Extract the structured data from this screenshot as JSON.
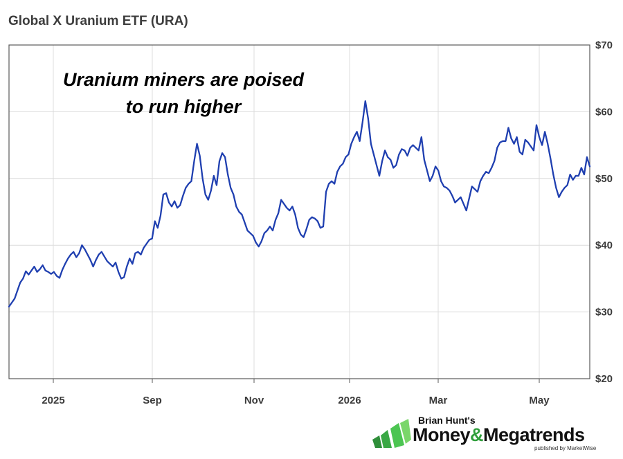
{
  "chart_data": {
    "type": "line",
    "title": "Global X Uranium ETF (URA)",
    "annotation": [
      "Uranium miners are poised",
      "to run higher"
    ],
    "xlabel": "",
    "ylabel": "",
    "ylim": [
      20,
      70
    ],
    "yticks": [
      20,
      30,
      40,
      50,
      60,
      70
    ],
    "ytick_labels": [
      "$20",
      "$30",
      "$40",
      "$50",
      "$60",
      "$70"
    ],
    "xtick_labels": [
      "2025",
      "Sep",
      "Nov",
      "2026",
      "Mar",
      "May"
    ],
    "grid": true,
    "line_color": "#1f3fb0",
    "series": [
      {
        "values": [
          30.8,
          31.4,
          32.0,
          33.2,
          34.4,
          35.0,
          36.1,
          35.6,
          36.2,
          36.8,
          36.0,
          36.4,
          37.0,
          36.2,
          36.0,
          35.7,
          36.0,
          35.4,
          35.1,
          36.3,
          37.2,
          38.0,
          38.6,
          39.0,
          38.2,
          38.8,
          40.0,
          39.4,
          38.6,
          37.8,
          36.8,
          37.8,
          38.6,
          39.0,
          38.3,
          37.6,
          37.2,
          36.8,
          37.4,
          36.0,
          35.0,
          35.2,
          36.8,
          38.0,
          37.2,
          38.8,
          39.0,
          38.6,
          39.6,
          40.2,
          40.8,
          41.0,
          43.6,
          42.6,
          44.4,
          47.6,
          47.8,
          46.4,
          45.8,
          46.6,
          45.6,
          46.0,
          47.4,
          48.6,
          49.2,
          49.6,
          52.6,
          55.2,
          53.4,
          50.0,
          47.6,
          46.8,
          48.2,
          50.4,
          49.0,
          52.6,
          53.8,
          53.2,
          50.6,
          48.6,
          47.6,
          45.8,
          45.0,
          44.6,
          43.4,
          42.2,
          41.8,
          41.4,
          40.4,
          39.8,
          40.6,
          41.8,
          42.2,
          42.8,
          42.2,
          43.8,
          44.8,
          46.8,
          46.2,
          45.6,
          45.2,
          45.8,
          44.6,
          42.6,
          41.6,
          41.2,
          42.4,
          43.8,
          44.2,
          44.0,
          43.6,
          42.6,
          42.8,
          48.0,
          49.2,
          49.6,
          49.2,
          51.0,
          51.8,
          52.2,
          53.2,
          53.6,
          55.2,
          56.2,
          57.0,
          55.6,
          58.4,
          61.6,
          59.0,
          55.2,
          53.6,
          52.0,
          50.4,
          52.6,
          54.2,
          53.2,
          52.8,
          51.6,
          52.0,
          53.6,
          54.4,
          54.2,
          53.4,
          54.6,
          55.0,
          54.6,
          54.2,
          56.2,
          52.8,
          51.2,
          49.6,
          50.4,
          51.8,
          51.2,
          49.6,
          48.8,
          48.6,
          48.2,
          47.4,
          46.4,
          46.8,
          47.2,
          46.2,
          45.2,
          47.0,
          48.8,
          48.4,
          48.0,
          49.6,
          50.4,
          51.0,
          50.8,
          51.6,
          52.6,
          54.6,
          55.4,
          55.6,
          55.6,
          57.6,
          56.0,
          55.2,
          56.2,
          54.0,
          53.6,
          55.8,
          55.4,
          54.8,
          54.2,
          58.0,
          56.2,
          55.0,
          57.0,
          55.2,
          53.0,
          50.6,
          48.6,
          47.2,
          48.0,
          48.6,
          49.0,
          50.6,
          49.8,
          50.4,
          50.4,
          51.6,
          50.6,
          53.2,
          51.8
        ]
      }
    ]
  },
  "logo": {
    "byline": "Brian Hunt's",
    "brand_left": "Money",
    "brand_amp": "&",
    "brand_right": "Megatrends",
    "publisher": "published by MarketWise"
  }
}
